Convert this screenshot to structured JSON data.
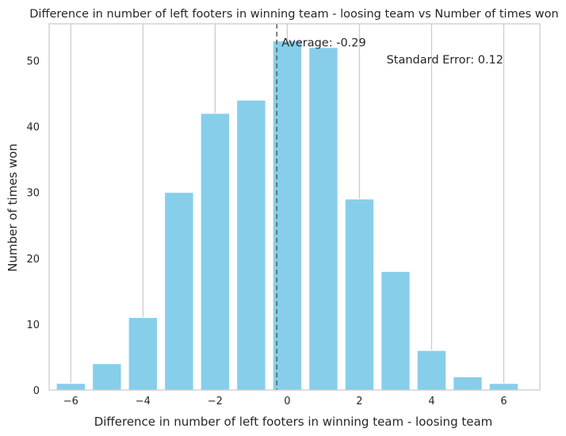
{
  "chart_data": {
    "type": "bar",
    "title": "Difference in number of left footers in winning team - loosing team vs Number of times won",
    "xlabel": "Difference in number of left footers in winning team - loosing team",
    "ylabel": "Number of times won",
    "x": [
      -6,
      -5,
      -4,
      -3,
      -2,
      -1,
      0,
      1,
      2,
      3,
      4,
      5,
      6
    ],
    "values": [
      1,
      4,
      11,
      30,
      42,
      44,
      53,
      52,
      29,
      18,
      6,
      2,
      1
    ],
    "xlim": [
      -6.6,
      7.0
    ],
    "ylim": [
      0,
      55.6
    ],
    "xticks": [
      -6,
      -4,
      -2,
      0,
      2,
      4,
      6
    ],
    "xtick_labels": [
      "−6",
      "−4",
      "−2",
      "0",
      "2",
      "4",
      "6"
    ],
    "yticks": [
      0,
      10,
      20,
      30,
      40,
      50
    ],
    "ytick_labels": [
      "0",
      "10",
      "20",
      "30",
      "40",
      "50"
    ],
    "bar_color": "#87ceeb",
    "grid": "vertical",
    "average_line": {
      "x": -0.29,
      "color": "#5a5a5a",
      "style": "dashed"
    },
    "annotations": {
      "average": "Average: -0.29",
      "standard_error": "Standard Error: 0.12"
    }
  }
}
